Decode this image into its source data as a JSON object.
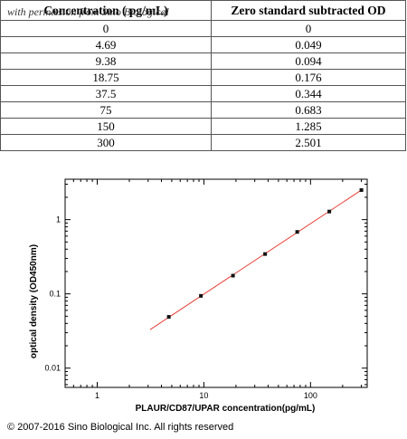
{
  "table": {
    "watermark": "with permission from Sino Biological",
    "headers": [
      "Concentration ( pg/mL)",
      "Zero standard subtracted OD"
    ],
    "rows": [
      [
        "0",
        "0"
      ],
      [
        "4.69",
        "0.049"
      ],
      [
        "9.38",
        "0.094"
      ],
      [
        "18.75",
        "0.176"
      ],
      [
        "37.5",
        "0.344"
      ],
      [
        "75",
        "0.683"
      ],
      [
        "150",
        "1.285"
      ],
      [
        "300",
        "2.501"
      ]
    ]
  },
  "chart_data": {
    "type": "scatter",
    "x": [
      4.69,
      9.38,
      18.75,
      37.5,
      75,
      150,
      300
    ],
    "y": [
      0.049,
      0.094,
      0.176,
      0.344,
      0.683,
      1.285,
      2.501
    ],
    "fit_line": {
      "x": [
        3.13,
        300
      ],
      "y": [
        0.033,
        2.501
      ],
      "color": "#e8413a"
    },
    "xlabel": "PLAUR/CD87/UPAR concentration(pg/mL)",
    "ylabel": "optical density (OD450nm)",
    "xscale": "log",
    "yscale": "log",
    "xlim": [
      0.5,
      340
    ],
    "ylim": [
      0.0055,
      3.5
    ],
    "xticks": [
      1,
      10,
      100
    ],
    "xtick_labels": [
      "1",
      "10",
      "100"
    ],
    "yticks": [
      0.01,
      0.1,
      1
    ],
    "ytick_labels": [
      "0.01",
      "0.1",
      "1"
    ],
    "grid": false
  },
  "footer": {
    "copyright": "© 2007-2016 Sino Biological Inc. All rights reserved"
  }
}
